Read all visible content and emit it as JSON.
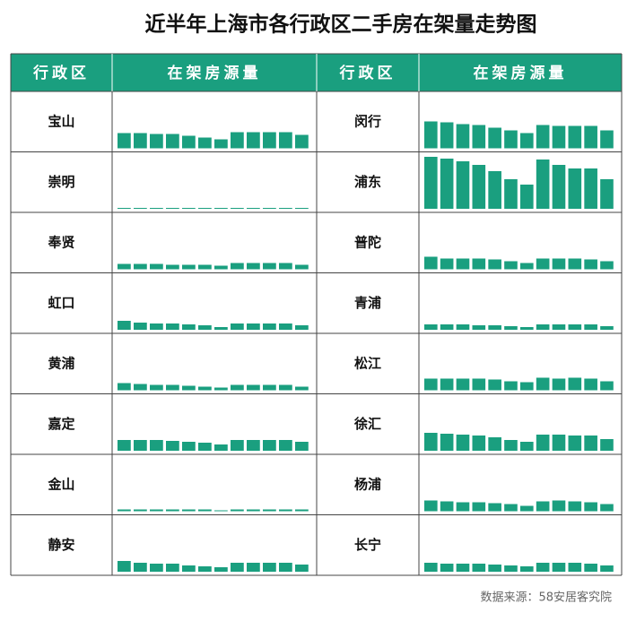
{
  "title": "近半年上海市各行政区二手房在架量走势图",
  "headers": [
    "行政区",
    "在架房源量",
    "行政区",
    "在架房源量"
  ],
  "districts": [
    {
      "name": "宝山",
      "values": [
        17,
        17,
        16,
        16,
        14,
        12,
        10,
        18,
        18,
        18,
        18,
        15
      ]
    },
    {
      "name": "崇明",
      "values": [
        1,
        1,
        1,
        1,
        1,
        1,
        1,
        1,
        1,
        1,
        1,
        1
      ]
    },
    {
      "name": "奉贤",
      "values": [
        6,
        6,
        6,
        5,
        5,
        5,
        4,
        7,
        7,
        7,
        7,
        5
      ]
    },
    {
      "name": "虹口",
      "values": [
        10,
        8,
        7,
        7,
        6,
        5,
        3,
        7,
        7,
        7,
        7,
        5
      ]
    },
    {
      "name": "黄浦",
      "values": [
        8,
        7,
        6,
        6,
        5,
        4,
        3,
        6,
        6,
        6,
        6,
        4
      ]
    },
    {
      "name": "嘉定",
      "values": [
        12,
        12,
        12,
        11,
        10,
        9,
        7,
        12,
        12,
        12,
        12,
        10
      ]
    },
    {
      "name": "金山",
      "values": [
        2,
        2,
        2,
        2,
        2,
        2,
        1,
        2,
        2,
        2,
        2,
        2
      ]
    },
    {
      "name": "静安",
      "values": [
        12,
        10,
        9,
        9,
        7,
        6,
        5,
        10,
        10,
        10,
        10,
        8
      ]
    },
    {
      "name": "闵行",
      "values": [
        30,
        29,
        27,
        26,
        23,
        20,
        17,
        26,
        25,
        25,
        25,
        20
      ]
    },
    {
      "name": "浦东",
      "values": [
        58,
        56,
        53,
        49,
        42,
        33,
        27,
        55,
        49,
        45,
        45,
        33
      ]
    },
    {
      "name": "普陀",
      "values": [
        14,
        12,
        12,
        12,
        11,
        9,
        7,
        12,
        12,
        12,
        11,
        9
      ]
    },
    {
      "name": "青浦",
      "values": [
        6,
        6,
        6,
        5,
        5,
        4,
        3,
        6,
        6,
        6,
        6,
        4
      ]
    },
    {
      "name": "松江",
      "values": [
        13,
        13,
        13,
        13,
        12,
        10,
        9,
        14,
        13,
        14,
        13,
        10
      ]
    },
    {
      "name": "徐汇",
      "values": [
        20,
        19,
        18,
        17,
        15,
        12,
        10,
        18,
        18,
        17,
        17,
        13
      ]
    },
    {
      "name": "杨浦",
      "values": [
        12,
        11,
        10,
        10,
        9,
        8,
        6,
        11,
        12,
        11,
        10,
        8
      ]
    },
    {
      "name": "长宁",
      "values": [
        10,
        9,
        9,
        9,
        8,
        7,
        6,
        10,
        10,
        10,
        9,
        7
      ]
    }
  ],
  "source": "数据来源：58安居客究院"
}
